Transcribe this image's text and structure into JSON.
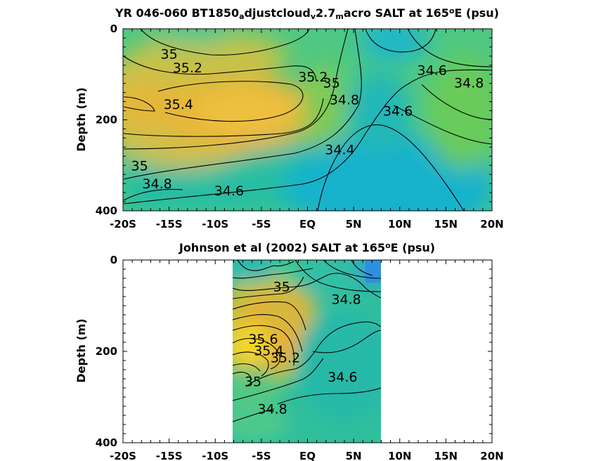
{
  "chart_data": [
    {
      "type": "heatmap",
      "subtype": "filled contour",
      "title": {
        "text": "YR 046-060 BT1850",
        "parts": [
          {
            "t": "YR 046-060 BT1850"
          },
          {
            "t": "a",
            "sub": true
          },
          {
            "t": "djustcloud"
          },
          {
            "t": "v",
            "sub": true
          },
          {
            "t": "2.7"
          },
          {
            "t": "m",
            "sub": true
          },
          {
            "t": "acro SALT at 165"
          },
          {
            "t": "o",
            "sup": true
          },
          {
            "t": "E (psu)"
          }
        ]
      },
      "ylabel": "Depth (m)",
      "xlabel": "",
      "xticks": [
        "-20S",
        "-15S",
        "-10S",
        "-5S",
        "EQ",
        "5N",
        "10N",
        "15N",
        "20N"
      ],
      "yticks": [
        "0",
        "200",
        "400"
      ],
      "xlim": [
        -20,
        20
      ],
      "ylim": [
        0,
        400
      ],
      "y_reversed": true,
      "contour_labels": [
        {
          "text": "35",
          "lat": -15,
          "depth": 55
        },
        {
          "text": "35.2",
          "lat": -13,
          "depth": 85
        },
        {
          "text": "35.4",
          "lat": -14,
          "depth": 165
        },
        {
          "text": "35.2",
          "lat": 0.6,
          "depth": 105
        },
        {
          "text": "35",
          "lat": 2.6,
          "depth": 118
        },
        {
          "text": "34.8",
          "lat": 4,
          "depth": 155
        },
        {
          "text": "34.6",
          "lat": 9.8,
          "depth": 180
        },
        {
          "text": "34.6",
          "lat": 13.5,
          "depth": 90
        },
        {
          "text": "34.8",
          "lat": 17.5,
          "depth": 118
        },
        {
          "text": "34.4",
          "lat": 3.5,
          "depth": 265
        },
        {
          "text": "35",
          "lat": -18.2,
          "depth": 300
        },
        {
          "text": "34.8",
          "lat": -16.3,
          "depth": 340
        },
        {
          "text": "34.6",
          "lat": -8.5,
          "depth": 355
        }
      ]
    },
    {
      "type": "heatmap",
      "subtype": "filled contour",
      "title": {
        "text": "Johnson et al (2002) SALT at 165",
        "parts": [
          {
            "t": "Johnson et al (2002) SALT at 165"
          },
          {
            "t": "o",
            "sup": true
          },
          {
            "t": "E (psu)"
          }
        ]
      },
      "ylabel": "Depth (m)",
      "xlabel": "",
      "xticks": [
        "-20S",
        "-15S",
        "-10S",
        "-5S",
        "EQ",
        "5N",
        "10N",
        "15N",
        "20N"
      ],
      "yticks": [
        "0",
        "200",
        "400"
      ],
      "xlim": [
        -20,
        20
      ],
      "ylim": [
        0,
        400
      ],
      "y_reversed": true,
      "data_coverage_lat": [
        -8,
        8
      ],
      "contour_labels": [
        {
          "text": "35",
          "lat": -2.8,
          "depth": 58
        },
        {
          "text": "34.8",
          "lat": 4.2,
          "depth": 85
        },
        {
          "text": "35.6",
          "lat": -4.8,
          "depth": 172
        },
        {
          "text": "35.4",
          "lat": -4.2,
          "depth": 198
        },
        {
          "text": "35.2",
          "lat": -2.4,
          "depth": 213
        },
        {
          "text": "34.6",
          "lat": 3.8,
          "depth": 255
        },
        {
          "text": "35",
          "lat": -5.9,
          "depth": 265
        },
        {
          "text": "34.8",
          "lat": -3.8,
          "depth": 325
        }
      ]
    }
  ],
  "colors": {
    "high_salt": "#f4e31b",
    "orange": "#e9b334",
    "green": "#6fcc55",
    "teal": "#2bbfa0",
    "low_salt": "#16b1cf",
    "lowest_salt": "#2d96dc",
    "contour": "#000000",
    "missing": "#ffffff"
  }
}
